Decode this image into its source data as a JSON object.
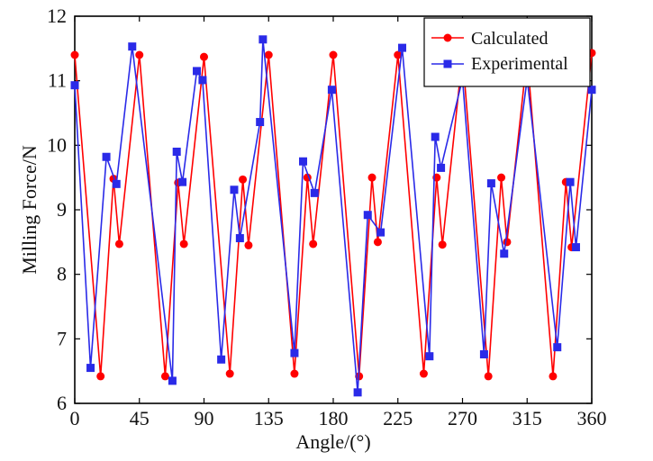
{
  "chart_data": {
    "type": "line",
    "title": "",
    "xlabel": "Angle/(°)",
    "ylabel": "Milling Force/N",
    "xlim": [
      0,
      360
    ],
    "ylim": [
      6,
      12
    ],
    "xticks": [
      0,
      45,
      90,
      135,
      180,
      225,
      270,
      315,
      360
    ],
    "yticks": [
      6,
      7,
      8,
      9,
      10,
      11,
      12
    ],
    "legend_position": "top-right",
    "series": [
      {
        "name": "Calculated",
        "color": "#ff0000",
        "marker": "circle",
        "x": [
          0,
          18,
          27,
          31,
          45,
          63,
          72,
          76,
          90,
          108,
          117,
          121,
          135,
          153,
          162,
          166,
          180,
          198,
          207,
          211,
          225,
          243,
          252,
          256,
          270,
          288,
          297,
          301,
          315,
          333,
          342,
          346,
          360
        ],
        "y": [
          11.4,
          6.42,
          9.48,
          8.47,
          11.4,
          6.42,
          9.42,
          8.47,
          11.37,
          6.46,
          9.47,
          8.45,
          11.4,
          6.46,
          9.5,
          8.47,
          11.4,
          6.42,
          9.5,
          8.5,
          11.4,
          6.46,
          9.5,
          8.46,
          11.4,
          6.42,
          9.5,
          8.5,
          11.4,
          6.42,
          9.43,
          8.42,
          11.43
        ]
      },
      {
        "name": "Experimental",
        "color": "#2a2ae8",
        "marker": "square",
        "x": [
          0,
          11,
          22,
          29,
          40,
          68,
          71,
          75,
          85,
          89,
          102,
          111,
          115,
          129,
          131,
          153,
          159,
          167,
          179,
          197,
          204,
          213,
          228,
          247,
          251,
          255,
          270,
          285,
          290,
          299,
          315,
          336,
          345,
          349,
          360
        ],
        "y": [
          10.93,
          6.55,
          9.82,
          9.4,
          11.53,
          6.35,
          9.9,
          9.43,
          11.15,
          11.01,
          6.68,
          9.31,
          8.56,
          10.36,
          11.64,
          6.78,
          9.75,
          9.26,
          10.86,
          6.17,
          8.92,
          8.65,
          11.51,
          6.73,
          10.13,
          9.65,
          11.03,
          6.76,
          9.41,
          8.32,
          11.03,
          6.87,
          9.43,
          8.42,
          10.86
        ]
      }
    ]
  },
  "colors": {
    "calculated": "#ff0000",
    "experimental": "#2a2ae8",
    "axes": "#000000"
  }
}
